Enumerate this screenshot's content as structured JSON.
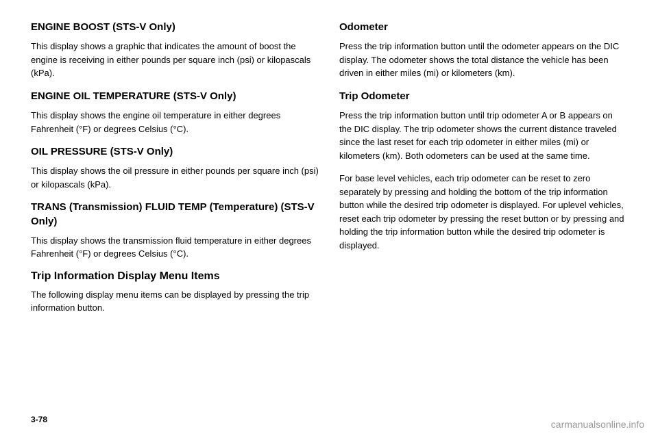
{
  "left_column": {
    "sections": [
      {
        "heading": "ENGINE BOOST (STS-V Only)",
        "body": "This display shows a graphic that indicates the amount of boost the engine is receiving in either pounds per square inch (psi) or kilopascals (kPa)."
      },
      {
        "heading": "ENGINE OIL TEMPERATURE (STS-V Only)",
        "body": "This display shows the engine oil temperature in either degrees Fahrenheit (°F) or degrees Celsius (°C)."
      },
      {
        "heading": "OIL PRESSURE (STS-V Only)",
        "body": "This display shows the oil pressure in either pounds per square inch (psi) or kilopascals (kPa)."
      },
      {
        "heading": "TRANS (Transmission) FLUID TEMP (Temperature) (STS-V Only)",
        "body": "This display shows the transmission fluid temperature in either degrees Fahrenheit (°F) or degrees Celsius (°C)."
      }
    ],
    "subheading": "Trip Information Display Menu Items",
    "sub_body": "The following display menu items can be displayed by pressing the trip information button."
  },
  "right_column": {
    "sections": [
      {
        "heading": "Odometer",
        "body": "Press the trip information button until the odometer appears on the DIC display. The odometer shows the total distance the vehicle has been driven in either miles (mi) or kilometers (km)."
      },
      {
        "heading": "Trip Odometer",
        "body": "Press the trip information button until trip odometer A or B appears on the DIC display. The trip odometer shows the current distance traveled since the last reset for each trip odometer in either miles (mi) or kilometers (km). Both odometers can be used at the same time."
      }
    ],
    "extra_body": "For base level vehicles, each trip odometer can be reset to zero separately by pressing and holding the bottom of the trip information button while the desired trip odometer is displayed. For uplevel vehicles, reset each trip odometer by pressing the reset button or by pressing and holding the trip information button while the desired trip odometer is displayed."
  },
  "page_number": "3-78",
  "watermark": "carmanualsonline.info"
}
